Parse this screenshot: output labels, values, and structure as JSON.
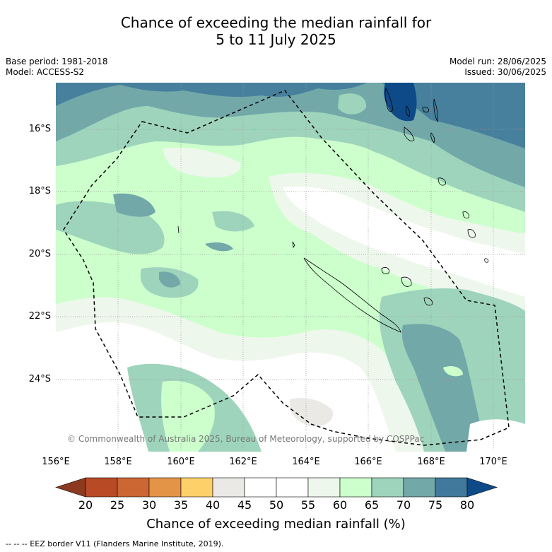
{
  "title_line1": "Chance of exceeding the median rainfall for",
  "title_line2": "5 to 11 July 2025",
  "base_period": "Base period: 1981-2018",
  "model": "Model: ACCESS-S2",
  "model_run": "Model run: 28/06/2025",
  "issued": "Issued: 30/06/2025",
  "copyright": "© Commonwealth of Australia 2025, Bureau of Meteorology, supported by COSPPac",
  "lat_labels": [
    "16°S",
    "18°S",
    "20°S",
    "22°S",
    "24°S"
  ],
  "lon_labels": [
    "156°E",
    "158°E",
    "160°E",
    "162°E",
    "164°E",
    "166°E",
    "168°E",
    "170°E"
  ],
  "colorbar": {
    "title": "Chance of exceeding median rainfall (%)",
    "ticks": [
      "20",
      "25",
      "30",
      "35",
      "40",
      "45",
      "50",
      "55",
      "60",
      "65",
      "70",
      "75",
      "80"
    ],
    "colors": [
      "#b94a26",
      "#cc6633",
      "#e39447",
      "#fdd06a",
      "#ebe9e6",
      "#ffffff",
      "#ffffff",
      "#eef7ec",
      "#ccffcc",
      "#9ed4bc",
      "#72a8a8",
      "#40799b"
    ],
    "under_color": "#8b3a1f",
    "over_color": "#0e4a88"
  },
  "footer": "-- -- -- EEZ border V11 (Flanders Marine Institute, 2019)."
}
